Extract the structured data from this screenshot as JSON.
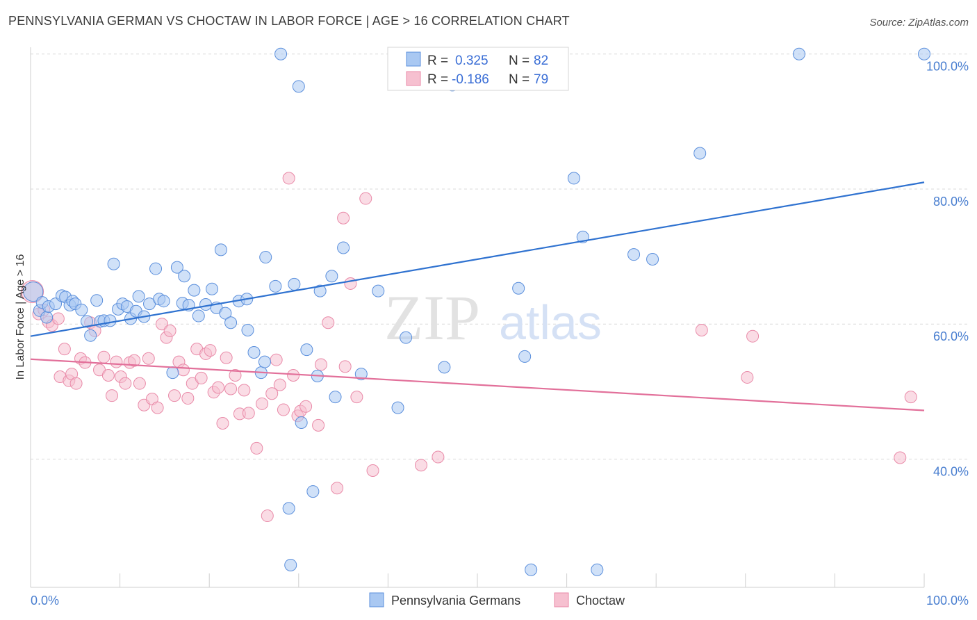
{
  "header": {
    "title": "PENNSYLVANIA GERMAN VS CHOCTAW IN LABOR FORCE | AGE > 16 CORRELATION CHART",
    "source": "Source: ZipAtlas.com"
  },
  "colors": {
    "blue_fill": "#a9c8f2",
    "blue_stroke": "#5b8fdc",
    "blue_line": "#2f72d0",
    "pink_fill": "#f6c0d0",
    "pink_stroke": "#e98aa8",
    "pink_line": "#e2709a",
    "tick_label": "#4a7fd0",
    "grid": "#d9d9d9"
  },
  "legend": {
    "row1": {
      "r_label": "R =",
      "r_value": "0.325",
      "n_label": "N =",
      "n_value": "82"
    },
    "row2": {
      "r_label": "R =",
      "r_value": "-0.186",
      "n_label": "N =",
      "n_value": "79"
    }
  },
  "watermark": {
    "zip": "ZIP",
    "atlas": "atlas"
  },
  "bottom_legend": {
    "series1": "Pennsylvania Germans",
    "series2": "Choctaw"
  },
  "chart_data": {
    "type": "scatter",
    "title": "PENNSYLVANIA GERMAN VS CHOCTAW IN LABOR FORCE | AGE > 16 CORRELATION CHART",
    "xlabel": "",
    "ylabel": "In Labor Force | Age > 16",
    "xlim": [
      0,
      100
    ],
    "ylim": [
      21,
      101
    ],
    "x_tick_labels": [
      "0.0%",
      "100.0%"
    ],
    "y_ticks": [
      40,
      60,
      80,
      100
    ],
    "y_tick_labels": [
      "40.0%",
      "60.0%",
      "80.0%",
      "100.0%"
    ],
    "grid": "horizontal dashed",
    "legend_position": "top-center",
    "series": [
      {
        "name": "Pennsylvania Germans",
        "color": "#a9c8f2",
        "R": 0.325,
        "N": 82,
        "trend": {
          "x": [
            0,
            100
          ],
          "y": [
            58.2,
            81.0
          ]
        },
        "points": [
          [
            0.3,
            64.8
          ],
          [
            1.0,
            62.0
          ],
          [
            1.3,
            63.2
          ],
          [
            1.8,
            61.0
          ],
          [
            2.0,
            62.6
          ],
          [
            2.8,
            63.0
          ],
          [
            3.5,
            64.2
          ],
          [
            3.9,
            64.0
          ],
          [
            4.4,
            62.8
          ],
          [
            4.7,
            63.4
          ],
          [
            5.0,
            63.0
          ],
          [
            5.7,
            62.1
          ],
          [
            6.3,
            60.4
          ],
          [
            6.7,
            58.3
          ],
          [
            7.4,
            63.5
          ],
          [
            7.8,
            60.4
          ],
          [
            8.2,
            60.5
          ],
          [
            8.9,
            60.5
          ],
          [
            9.3,
            68.9
          ],
          [
            9.8,
            62.2
          ],
          [
            10.3,
            63.0
          ],
          [
            10.8,
            62.6
          ],
          [
            11.2,
            60.8
          ],
          [
            11.8,
            61.9
          ],
          [
            12.1,
            64.1
          ],
          [
            12.7,
            61.1
          ],
          [
            13.3,
            63.0
          ],
          [
            14.0,
            68.2
          ],
          [
            14.4,
            63.7
          ],
          [
            14.9,
            63.4
          ],
          [
            15.9,
            52.8
          ],
          [
            16.4,
            68.4
          ],
          [
            17.0,
            63.1
          ],
          [
            17.2,
            67.1
          ],
          [
            17.7,
            62.8
          ],
          [
            18.3,
            65.0
          ],
          [
            18.8,
            61.2
          ],
          [
            19.6,
            62.9
          ],
          [
            20.3,
            65.2
          ],
          [
            20.8,
            62.4
          ],
          [
            21.3,
            71.0
          ],
          [
            21.8,
            61.6
          ],
          [
            22.4,
            60.2
          ],
          [
            23.3,
            63.4
          ],
          [
            24.2,
            63.7
          ],
          [
            24.3,
            59.1
          ],
          [
            25.0,
            55.8
          ],
          [
            25.8,
            52.8
          ],
          [
            26.2,
            54.4
          ],
          [
            26.3,
            69.9
          ],
          [
            27.4,
            65.6
          ],
          [
            28.0,
            100.0
          ],
          [
            28.9,
            32.7
          ],
          [
            29.1,
            24.3
          ],
          [
            29.5,
            65.9
          ],
          [
            30.0,
            95.2
          ],
          [
            30.3,
            45.4
          ],
          [
            30.9,
            56.2
          ],
          [
            31.6,
            35.2
          ],
          [
            32.1,
            52.3
          ],
          [
            32.4,
            64.9
          ],
          [
            33.7,
            67.1
          ],
          [
            34.1,
            49.2
          ],
          [
            35.0,
            71.3
          ],
          [
            37.0,
            52.6
          ],
          [
            38.9,
            64.9
          ],
          [
            41.1,
            47.6
          ],
          [
            42.0,
            58.0
          ],
          [
            43.8,
            100.0
          ],
          [
            46.3,
            53.6
          ],
          [
            47.2,
            95.4
          ],
          [
            50.4,
            100.0
          ],
          [
            54.6,
            65.3
          ],
          [
            55.3,
            55.2
          ],
          [
            56.0,
            23.6
          ],
          [
            60.8,
            81.6
          ],
          [
            61.8,
            72.9
          ],
          [
            63.4,
            23.6
          ],
          [
            67.5,
            70.3
          ],
          [
            69.6,
            69.6
          ],
          [
            74.9,
            85.3
          ],
          [
            86.0,
            100.0
          ],
          [
            100.0,
            100.0
          ]
        ]
      },
      {
        "name": "Choctaw",
        "color": "#f6c0d0",
        "R": -0.186,
        "N": 79,
        "trend": {
          "x": [
            0,
            100
          ],
          "y": [
            54.8,
            47.2
          ]
        },
        "points": [
          [
            0.2,
            64.8
          ],
          [
            0.9,
            61.5
          ],
          [
            1.5,
            62.1
          ],
          [
            2.0,
            60.3
          ],
          [
            2.4,
            59.8
          ],
          [
            3.1,
            60.8
          ],
          [
            3.3,
            52.2
          ],
          [
            3.8,
            56.3
          ],
          [
            4.3,
            51.6
          ],
          [
            4.6,
            52.6
          ],
          [
            5.1,
            51.2
          ],
          [
            5.6,
            54.9
          ],
          [
            6.1,
            54.3
          ],
          [
            6.7,
            60.2
          ],
          [
            7.2,
            59.0
          ],
          [
            7.7,
            53.2
          ],
          [
            8.2,
            55.1
          ],
          [
            8.7,
            52.4
          ],
          [
            9.1,
            49.4
          ],
          [
            9.6,
            54.4
          ],
          [
            10.1,
            52.2
          ],
          [
            10.6,
            51.2
          ],
          [
            11.1,
            54.3
          ],
          [
            11.6,
            54.6
          ],
          [
            12.2,
            51.2
          ],
          [
            12.7,
            48.0
          ],
          [
            13.2,
            54.9
          ],
          [
            13.6,
            48.9
          ],
          [
            14.2,
            47.6
          ],
          [
            14.7,
            60.0
          ],
          [
            15.2,
            58.0
          ],
          [
            15.6,
            59.0
          ],
          [
            16.1,
            49.4
          ],
          [
            16.6,
            54.4
          ],
          [
            17.1,
            53.2
          ],
          [
            17.6,
            49.0
          ],
          [
            18.1,
            51.2
          ],
          [
            18.6,
            56.3
          ],
          [
            19.1,
            52.0
          ],
          [
            19.6,
            55.6
          ],
          [
            20.1,
            56.1
          ],
          [
            20.5,
            49.9
          ],
          [
            21.0,
            50.6
          ],
          [
            21.5,
            45.3
          ],
          [
            21.9,
            55.0
          ],
          [
            22.4,
            50.4
          ],
          [
            22.9,
            52.4
          ],
          [
            23.4,
            46.7
          ],
          [
            23.9,
            50.2
          ],
          [
            24.4,
            46.8
          ],
          [
            25.3,
            41.6
          ],
          [
            25.9,
            48.2
          ],
          [
            26.5,
            31.6
          ],
          [
            27.0,
            49.7
          ],
          [
            27.5,
            54.7
          ],
          [
            27.9,
            51.0
          ],
          [
            28.3,
            47.3
          ],
          [
            28.9,
            81.6
          ],
          [
            29.4,
            52.4
          ],
          [
            29.9,
            46.4
          ],
          [
            30.2,
            47.1
          ],
          [
            30.8,
            47.8
          ],
          [
            32.2,
            45.0
          ],
          [
            32.5,
            54.0
          ],
          [
            33.3,
            60.2
          ],
          [
            34.3,
            35.7
          ],
          [
            35.0,
            75.7
          ],
          [
            35.2,
            53.7
          ],
          [
            35.8,
            66.0
          ],
          [
            36.5,
            49.2
          ],
          [
            37.5,
            78.6
          ],
          [
            38.3,
            38.3
          ],
          [
            43.7,
            39.1
          ],
          [
            45.6,
            40.3
          ],
          [
            75.1,
            59.1
          ],
          [
            80.2,
            52.1
          ],
          [
            80.8,
            58.2
          ],
          [
            97.3,
            40.2
          ],
          [
            98.5,
            49.2
          ]
        ]
      }
    ]
  }
}
